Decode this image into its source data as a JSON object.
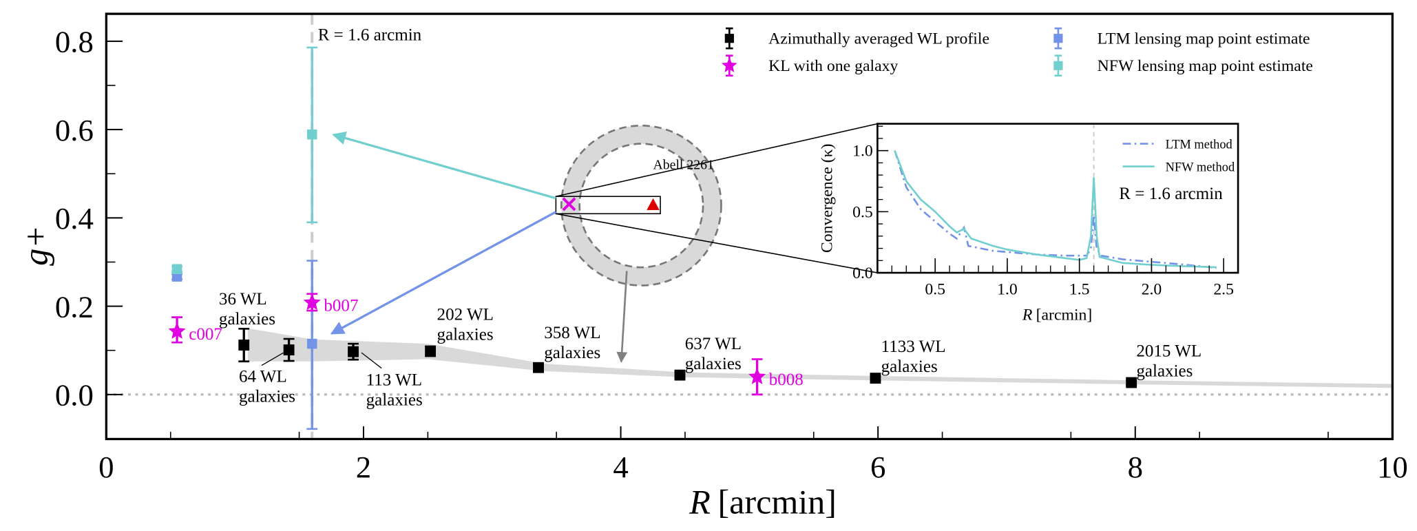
{
  "chart_data": [
    {
      "type": "scatter",
      "xlabel_italic": "R",
      "xlabel": "[arcmin]",
      "ylabel": "g+",
      "xlim": [
        0,
        10
      ],
      "ylim": [
        -0.1,
        0.86
      ],
      "xticks": [
        0,
        2,
        4,
        6,
        8,
        10
      ],
      "xtick_labels": [
        "0",
        "2",
        "4",
        "6",
        "8",
        "10"
      ],
      "yticks": [
        0.0,
        0.2,
        0.4,
        0.6,
        0.8
      ],
      "ytick_labels": [
        "0.0",
        "0.2",
        "0.4",
        "0.6",
        "0.8"
      ],
      "reference_line_label": "R = 1.6 arcmin",
      "reference_x": 1.6,
      "zero_line": 0,
      "legend_position": "top-right",
      "series": [
        {
          "name": "Azimuthally averaged WL profile",
          "color": "#000000",
          "marker": "square",
          "x": [
            1.07,
            1.42,
            1.92,
            2.52,
            3.36,
            4.46,
            5.98,
            7.97
          ],
          "y": [
            0.112,
            0.101,
            0.097,
            0.098,
            0.061,
            0.044,
            0.037,
            0.027
          ],
          "yerr": [
            0.037,
            0.025,
            0.018,
            0.011,
            0.008,
            0.006,
            0.005,
            0.005
          ],
          "labels": [
            "36 WL galaxies",
            "64 WL galaxies",
            "113 WL galaxies",
            "202 WL galaxies",
            "358 WL galaxies",
            "637 WL galaxies",
            "1133 WL galaxies",
            "2015 WL galaxies"
          ]
        },
        {
          "name": "KL with one galaxy",
          "color": "#e000e0",
          "marker": "star",
          "x": [
            0.55,
            1.6,
            5.06
          ],
          "y": [
            0.143,
            0.208,
            0.04
          ],
          "yerr_low": [
            0.025,
            0.018,
            0.04
          ],
          "yerr_high": [
            0.032,
            0.02,
            0.04
          ],
          "labels": [
            "c007",
            "b007",
            "b008"
          ]
        },
        {
          "name": "LTM lensing map point estimate",
          "color": "#7393e8",
          "marker": "square",
          "x": [
            0.55,
            1.6
          ],
          "y": [
            0.267,
            0.115
          ],
          "yerr_low": [
            0.006,
            0.193
          ],
          "yerr_high": [
            0.006,
            0.188
          ]
        },
        {
          "name": "NFW lensing map point estimate",
          "color": "#72cfcf",
          "marker": "square",
          "x": [
            0.55,
            1.6
          ],
          "y": [
            0.284,
            0.589
          ],
          "yerr_low": [
            0.006,
            0.199
          ],
          "yerr_high": [
            0.006,
            0.197
          ]
        }
      ],
      "band": {
        "color": "#d9d9d9",
        "x": [
          1.1,
          1.6,
          2.5,
          3.4,
          4.5,
          6.0,
          8.0,
          10.0
        ],
        "upper": [
          0.15,
          0.125,
          0.115,
          0.07,
          0.05,
          0.042,
          0.032,
          0.024
        ],
        "lower": [
          0.075,
          0.075,
          0.08,
          0.053,
          0.039,
          0.032,
          0.023,
          0.015
        ]
      },
      "cluster_label": "Abell 2261",
      "markers": {
        "x_mark_color": "#e000e0",
        "triangle_color": "#dd0000"
      }
    },
    {
      "type": "line",
      "xlabel_italic": "R",
      "xlabel": "[arcmin]",
      "ylabel": "Convergence (κ)",
      "xlim": [
        0.1,
        2.6
      ],
      "ylim": [
        0,
        1.22
      ],
      "xticks": [
        0.5,
        1.0,
        1.5,
        2.0,
        2.5
      ],
      "xtick_labels": [
        "0.5",
        "1.0",
        "1.5",
        "2.0",
        "2.5"
      ],
      "yticks": [
        0.0,
        0.5,
        1.0
      ],
      "ytick_labels": [
        "0.0",
        "0.5",
        "1.0"
      ],
      "reference_x": 1.6,
      "reference_line_label": "R = 1.6 arcmin",
      "legend_position": "top-right",
      "series": [
        {
          "name": "LTM method",
          "color": "#7393e8",
          "style": "dashdot",
          "x": [
            0.22,
            0.3,
            0.4,
            0.5,
            0.6,
            0.65,
            0.7,
            0.73,
            0.9,
            1.0,
            1.2,
            1.4,
            1.55,
            1.58,
            1.6,
            1.62,
            1.65,
            1.8,
            2.0,
            2.2,
            2.45
          ],
          "y": [
            1.0,
            0.7,
            0.52,
            0.42,
            0.32,
            0.28,
            0.37,
            0.22,
            0.18,
            0.17,
            0.15,
            0.14,
            0.14,
            0.2,
            0.47,
            0.2,
            0.14,
            0.11,
            0.09,
            0.07,
            0.04
          ]
        },
        {
          "name": "NFW method",
          "color": "#72cfcf",
          "style": "solid",
          "x": [
            0.22,
            0.3,
            0.4,
            0.5,
            0.6,
            0.65,
            0.7,
            0.75,
            0.9,
            1.0,
            1.2,
            1.4,
            1.5,
            1.55,
            1.58,
            1.6,
            1.62,
            1.64,
            1.8,
            2.0,
            2.2,
            2.45
          ],
          "y": [
            1.0,
            0.75,
            0.6,
            0.5,
            0.38,
            0.33,
            0.36,
            0.28,
            0.22,
            0.19,
            0.15,
            0.12,
            0.105,
            0.12,
            0.3,
            0.78,
            0.3,
            0.13,
            0.08,
            0.065,
            0.055,
            0.045
          ]
        }
      ]
    }
  ]
}
